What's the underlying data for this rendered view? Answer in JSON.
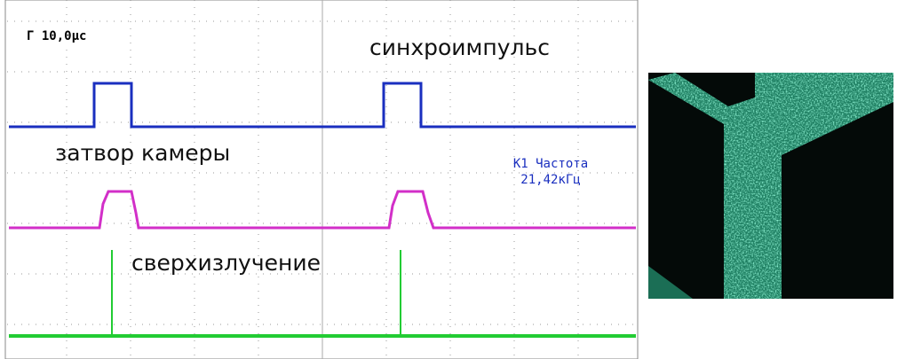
{
  "scope": {
    "timebase": "Г 10,0μс",
    "labels": [
      "синхроимпульс",
      "затвор камеры",
      "сверхизлучение"
    ],
    "measurement": {
      "name": "К1 Частота",
      "value": "21,42кГц"
    }
  }
}
